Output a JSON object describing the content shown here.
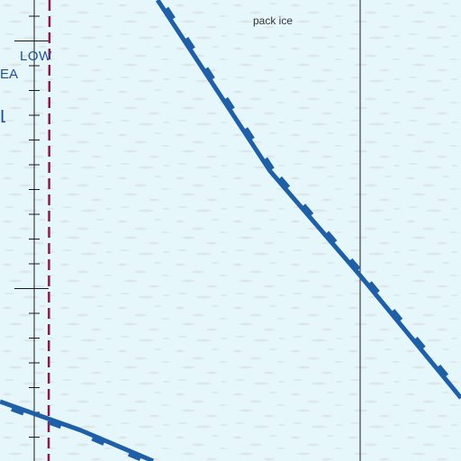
{
  "map": {
    "labels": {
      "pack_ice": "pack ice",
      "low": "LOW",
      "sea_fragment": "EA",
      "edge_fragment": "L"
    },
    "features": {
      "meridian_line": "thin-black-line",
      "boundary_dashed": "dashed-maroon-line",
      "ridge_lines": "blue-notched-line",
      "ice_pattern": "pack-ice-texture"
    },
    "colors": {
      "background": "#e6f7fc",
      "ice_speckle": "#d8d8d8",
      "ridge_line": "#1f5fa8",
      "dashed_boundary": "#8b1a4a",
      "grid_line": "#1a1a1a",
      "label_blue": "#1f4f99",
      "label_dark": "#333333"
    }
  }
}
